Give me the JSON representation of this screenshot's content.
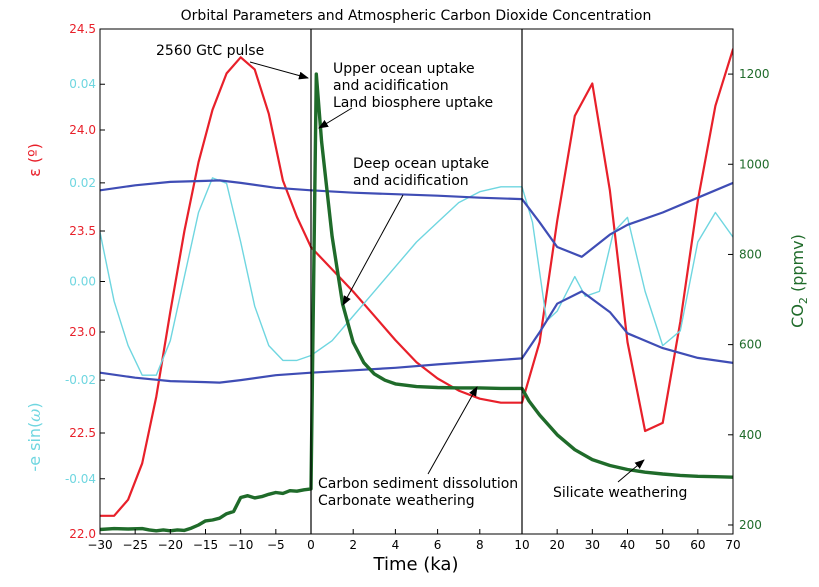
{
  "chart_data": {
    "type": "line",
    "title": "Orbital Parameters and Atmospheric Carbon Dioxide Concentration",
    "xlabel": "Time (ka)",
    "x_axis": {
      "segments": [
        {
          "from": -30,
          "to": 0,
          "ticks": [
            -30,
            -25,
            -20,
            -15,
            -10,
            -5,
            0
          ]
        },
        {
          "from": 0,
          "to": 10,
          "ticks": [
            0,
            2,
            4,
            6,
            8,
            10
          ]
        },
        {
          "from": 10,
          "to": 70,
          "ticks": [
            10,
            20,
            30,
            40,
            50,
            60,
            70
          ]
        }
      ]
    },
    "y_axes": {
      "obliquity": {
        "label": "ε (º)",
        "color": "#e8202a",
        "ylim": [
          22.0,
          24.5
        ],
        "ticks": [
          22.0,
          22.5,
          23.0,
          23.5,
          24.0,
          24.5
        ],
        "tick_labels": [
          "22.0",
          "22.5",
          "23.0",
          "23.5",
          "24.0",
          "24.5"
        ]
      },
      "precession": {
        "label_prefix": "-e sin(",
        "label_symbol": "ω",
        "label_suffix": ")",
        "color": "#6fd6e0",
        "ylim": [
          -0.0512,
          0.0512
        ],
        "ticks": [
          -0.04,
          -0.02,
          0.0,
          0.02,
          0.04
        ],
        "tick_labels": [
          "-0.04",
          "-0.02",
          "0.00",
          "0.02",
          "0.04"
        ]
      },
      "co2": {
        "label_main": "CO",
        "label_sub": "2",
        "label_unit": " (ppmv)",
        "color": "#1f6b2a",
        "ylim": [
          180,
          1300
        ],
        "ticks": [
          200,
          400,
          600,
          800,
          1000,
          1200
        ],
        "tick_labels": [
          "200",
          "400",
          "600",
          "800",
          "1000",
          "1200"
        ]
      }
    },
    "series": [
      {
        "axis": "obliquity",
        "color": "#e8202a",
        "x": [
          -30,
          -28,
          -26,
          -24,
          -22,
          -20,
          -18,
          -16,
          -14,
          -12,
          -10,
          -8,
          -6,
          -4,
          -2,
          0,
          1,
          2,
          3,
          4,
          5,
          6,
          7,
          8,
          9,
          10,
          15,
          20,
          25,
          30,
          35,
          40,
          45,
          50,
          55,
          60,
          65,
          70
        ],
        "y": [
          22.09,
          22.09,
          22.17,
          22.35,
          22.68,
          23.1,
          23.5,
          23.84,
          24.1,
          24.28,
          24.36,
          24.3,
          24.08,
          23.75,
          23.57,
          23.42,
          23.31,
          23.2,
          23.08,
          22.96,
          22.85,
          22.77,
          22.71,
          22.67,
          22.65,
          22.65,
          22.95,
          23.55,
          24.07,
          24.23,
          23.7,
          22.95,
          22.51,
          22.55,
          23.05,
          23.65,
          24.12,
          24.4
        ]
      },
      {
        "axis": "precession",
        "color": "#6fd6e0",
        "x": [
          -30,
          -28,
          -26,
          -24,
          -22,
          -20,
          -18,
          -16,
          -14,
          -12,
          -10,
          -8,
          -6,
          -4,
          -2,
          0,
          1,
          2,
          3,
          4,
          5,
          6,
          7,
          8,
          9,
          10,
          13,
          17,
          20,
          25,
          28,
          32,
          36,
          40,
          45,
          50,
          55,
          60,
          65,
          70
        ],
        "y": [
          0.01,
          -0.004,
          -0.013,
          -0.019,
          -0.019,
          -0.012,
          0.001,
          0.014,
          0.021,
          0.0199,
          0.008,
          -0.005,
          -0.013,
          -0.016,
          -0.016,
          -0.015,
          -0.012,
          -0.007,
          -0.002,
          0.003,
          0.008,
          0.012,
          0.016,
          0.0182,
          0.0192,
          0.0192,
          0.012,
          -0.008,
          -0.006,
          0.001,
          -0.003,
          -0.002,
          0.01,
          0.013,
          -0.002,
          -0.013,
          -0.01,
          0.008,
          0.014,
          0.009
        ]
      },
      {
        "axis": "precession",
        "color": "#3f4db5",
        "x": [
          -30,
          -25,
          -20,
          -15,
          -13,
          -10,
          -5,
          0,
          2,
          4,
          6,
          8,
          10,
          15,
          20,
          27,
          35,
          40,
          50,
          60,
          70
        ],
        "y": [
          0.0185,
          0.0195,
          0.0202,
          0.0204,
          0.0205,
          0.02,
          0.019,
          0.0185,
          0.018,
          0.0177,
          0.0174,
          0.017,
          0.0167,
          0.012,
          0.007,
          0.005,
          0.0095,
          0.0115,
          0.014,
          0.017,
          0.02
        ]
      },
      {
        "axis": "precession",
        "color": "#3f4db5",
        "x": [
          -30,
          -25,
          -20,
          -15,
          -13,
          -10,
          -5,
          0,
          2,
          4,
          6,
          8,
          10,
          15,
          20,
          27,
          35,
          40,
          50,
          60,
          70
        ],
        "y": [
          -0.0185,
          -0.0195,
          -0.0202,
          -0.0204,
          -0.0205,
          -0.02,
          -0.019,
          -0.0185,
          -0.018,
          -0.0175,
          -0.0168,
          -0.0162,
          -0.0156,
          -0.0103,
          -0.0045,
          -0.002,
          -0.0062,
          -0.0105,
          -0.0135,
          -0.0155,
          -0.0165
        ]
      },
      {
        "axis": "co2",
        "color": "#1f6b2a",
        "x": [
          -30,
          -28,
          -26,
          -24,
          -23,
          -22,
          -21,
          -20,
          -19,
          -18,
          -17,
          -16,
          -15,
          -14,
          -13,
          -12,
          -11,
          -10,
          -9,
          -8,
          -7,
          -6,
          -5,
          -4,
          -3,
          -2,
          -1,
          0,
          0.25,
          0.5,
          1,
          1.5,
          2,
          2.5,
          3,
          3.5,
          4,
          5,
          6,
          7,
          8,
          9,
          10,
          12,
          15,
          20,
          25,
          30,
          35,
          40,
          45,
          50,
          55,
          60,
          65,
          70
        ],
        "y": [
          190,
          192,
          191,
          192,
          189,
          187,
          189,
          187,
          189,
          188,
          193,
          200,
          209,
          211,
          215,
          225,
          230,
          261,
          265,
          260,
          263,
          268,
          272,
          270,
          276,
          275,
          278,
          280,
          1200,
          1050,
          840,
          690,
          605,
          560,
          535,
          521,
          513,
          507,
          505,
          504,
          504,
          503,
          503,
          475,
          444,
          400,
          367,
          345,
          332,
          323,
          317,
          313,
          310,
          308,
          307,
          306
        ]
      }
    ],
    "annotations": [
      {
        "label": "2560 GtC pulse"
      },
      {
        "lines": [
          "Upper ocean uptake",
          "and acidification",
          "Land biosphere uptake"
        ]
      },
      {
        "lines": [
          "Deep ocean uptake",
          "and acidification"
        ]
      },
      {
        "lines": [
          "Carbon sediment dissolution",
          "Carbonate weathering"
        ]
      },
      {
        "label": "Silicate weathering"
      }
    ]
  }
}
